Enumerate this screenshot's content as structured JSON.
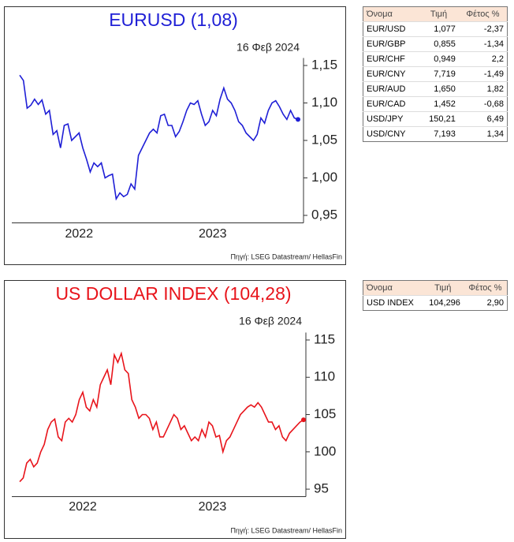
{
  "chart_data": [
    {
      "type": "line",
      "title": "EURUSD (1,08)",
      "subtitle": "16 Φεβ 2024",
      "source": "Πηγή: LSEG Datastream/ HellasFin",
      "categories": [
        null,
        null,
        null,
        null,
        null,
        null,
        null,
        null,
        null,
        null,
        null,
        null,
        null,
        null,
        null,
        null,
        "2022",
        null,
        null,
        null,
        null,
        null,
        null,
        null,
        null,
        null,
        null,
        null,
        null,
        null,
        null,
        null,
        null,
        null,
        null,
        null,
        null,
        null,
        null,
        null,
        null,
        null,
        null,
        null,
        null,
        null,
        null,
        null,
        null,
        null,
        null,
        null,
        "2023",
        null,
        null,
        null,
        null,
        null,
        null,
        null,
        null,
        null,
        null,
        null,
        null,
        null,
        null,
        null,
        null,
        null,
        null,
        null,
        null,
        null,
        null,
        null
      ],
      "series": [
        {
          "name": "EURUSD",
          "color": "#1f1fd6",
          "values": [
            1.137,
            1.13,
            1.093,
            1.097,
            1.105,
            1.098,
            1.104,
            1.085,
            1.09,
            1.058,
            1.063,
            1.04,
            1.07,
            1.072,
            1.05,
            1.055,
            1.06,
            1.04,
            1.025,
            1.008,
            1.02,
            1.015,
            1.02,
            1.0,
            1.003,
            1.005,
            0.972,
            0.98,
            0.975,
            0.978,
            0.992,
            0.985,
            1.03,
            1.04,
            1.05,
            1.06,
            1.065,
            1.06,
            1.083,
            1.085,
            1.07,
            1.07,
            1.055,
            1.062,
            1.075,
            1.09,
            1.1,
            1.098,
            1.103,
            1.085,
            1.07,
            1.075,
            1.09,
            1.083,
            1.105,
            1.12,
            1.105,
            1.1,
            1.09,
            1.075,
            1.07,
            1.06,
            1.055,
            1.05,
            1.058,
            1.08,
            1.073,
            1.09,
            1.1,
            1.103,
            1.095,
            1.085,
            1.078,
            1.09,
            1.08,
            1.078
          ]
        }
      ],
      "ylim": [
        0.94,
        1.16
      ],
      "yticks": [
        {
          "value": 0.95,
          "label": "0,95"
        },
        {
          "value": 1.0,
          "label": "1,00"
        },
        {
          "value": 1.05,
          "label": "1,05"
        },
        {
          "value": 1.1,
          "label": "1,10"
        },
        {
          "value": 1.15,
          "label": "1,15"
        }
      ],
      "end_marker": true
    },
    {
      "type": "line",
      "title": "US DOLLAR INDEX (104,28)",
      "subtitle": "16 Φεβ 2024",
      "source": "Πηγή: LSEG Datastream/ HellasFin",
      "categories": [
        null,
        null,
        null,
        null,
        null,
        null,
        null,
        null,
        null,
        null,
        null,
        null,
        null,
        null,
        null,
        null,
        null,
        null,
        "2022",
        null,
        null,
        null,
        null,
        null,
        null,
        null,
        null,
        null,
        null,
        null,
        null,
        null,
        null,
        null,
        null,
        null,
        null,
        null,
        null,
        null,
        null,
        null,
        null,
        null,
        null,
        null,
        null,
        null,
        null,
        null,
        null,
        null,
        null,
        null,
        null,
        "2023",
        null,
        null,
        null,
        null,
        null,
        null,
        null,
        null,
        null,
        null,
        null,
        null,
        null,
        null,
        null,
        null,
        null,
        null,
        null,
        null,
        null,
        null,
        null,
        null,
        null,
        null
      ],
      "series": [
        {
          "name": "US DOLLAR INDEX",
          "color": "#e8141b",
          "values": [
            96,
            96.5,
            98.5,
            99,
            98,
            98.5,
            100,
            101,
            103,
            104,
            104.4,
            102,
            101.5,
            104,
            104.5,
            104,
            105,
            107,
            108,
            106,
            105.5,
            107,
            106,
            109,
            110,
            111,
            109,
            113,
            112,
            113.2,
            111,
            110.5,
            107,
            106,
            104.5,
            105,
            105,
            104.5,
            103,
            104,
            102,
            102,
            103,
            104,
            105,
            104.5,
            103,
            103.5,
            102.5,
            101.5,
            102,
            101.5,
            103,
            102,
            104,
            103.5,
            102,
            102.2,
            100,
            101.5,
            102,
            103,
            104,
            105,
            105.5,
            106,
            106.3,
            106,
            106.6,
            106,
            105,
            104,
            104,
            103,
            103.5,
            102,
            101.5,
            102.5,
            103,
            103.5,
            104,
            104.3
          ]
        }
      ],
      "ylim": [
        94,
        116
      ],
      "yticks": [
        95,
        100,
        105,
        110,
        115
      ],
      "end_marker": true
    }
  ],
  "tables": [
    {
      "columns": [
        "Όνομα",
        "Τιμή",
        "Φέτος %"
      ],
      "rows": [
        [
          "EUR/USD",
          "1,077",
          "-2,37"
        ],
        [
          "EUR/GBP",
          "0,855",
          "-1,34"
        ],
        [
          "EUR/CHF",
          "0,949",
          "2,2"
        ],
        [
          "EUR/CNY",
          "7,719",
          "-1,49"
        ],
        [
          "EUR/AUD",
          "1,650",
          "1,82"
        ],
        [
          "EUR/CAD",
          "1,452",
          "-0,68"
        ],
        [
          "USD/JPY",
          "150,21",
          "6,49"
        ],
        [
          "USD/CNY",
          "7,193",
          "1,34"
        ]
      ]
    },
    {
      "columns": [
        "Όνομα",
        "Τιμή",
        "Φέτος %"
      ],
      "rows": [
        [
          "USD INDEX",
          "104,296",
          "2,90"
        ]
      ]
    }
  ]
}
